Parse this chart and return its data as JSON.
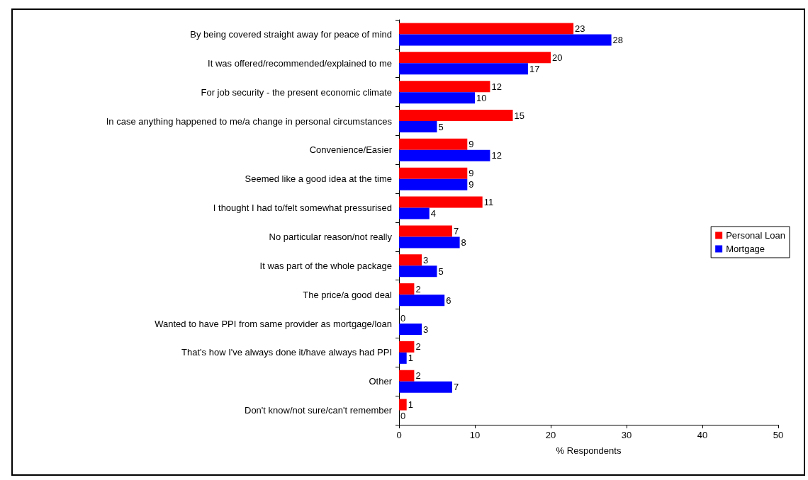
{
  "chart_data": {
    "type": "bar",
    "orientation": "horizontal",
    "xlabel": "% Respondents",
    "categories": [
      "By being covered straight away for peace of mind",
      "It was offered/recommended/explained to me",
      "For job security - the present economic climate",
      "In case anything happened to me/a change in personal circumstances",
      "Convenience/Easier",
      "Seemed like a good idea at the time",
      "I thought I had to/felt somewhat pressurised",
      "No particular reason/not really",
      "It was part of the whole package",
      "The price/a good deal",
      "Wanted to have PPI from same provider as mortgage/loan",
      "That's how I've always done it/have always had PPI",
      "Other",
      "Don't know/not sure/can't remember"
    ],
    "series": [
      {
        "name": "Personal Loan",
        "color": "#ff0000",
        "values": [
          23,
          20,
          12,
          15,
          9,
          9,
          11,
          7,
          3,
          2,
          0,
          2,
          2,
          1
        ]
      },
      {
        "name": "Mortgage",
        "color": "#0000ff",
        "values": [
          28,
          17,
          10,
          5,
          12,
          9,
          4,
          8,
          5,
          6,
          3,
          1,
          7,
          0
        ]
      }
    ],
    "xlim": [
      0,
      50
    ],
    "xticks": [
      0,
      10,
      20,
      30,
      40,
      50
    ],
    "grid": false,
    "legend": "right",
    "data_labels": true
  }
}
